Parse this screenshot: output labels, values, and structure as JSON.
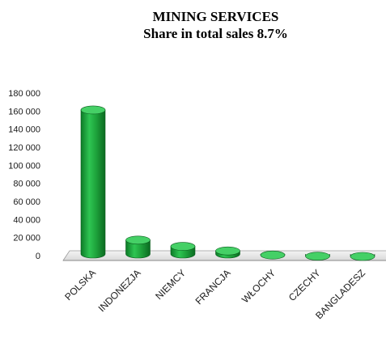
{
  "chart_data": {
    "type": "bar",
    "title": "MINING SERVICES",
    "subtitle": "Share in total sales 8.7%",
    "categories": [
      "POLSKA",
      "INDONEZJA",
      "NIEMCY",
      "FRANCJA",
      "WŁOCHY",
      "CZECHY",
      "BANGLADESZ"
    ],
    "values": [
      163000,
      19000,
      12000,
      7000,
      2500,
      1200,
      900
    ],
    "ylim": [
      0,
      180000
    ],
    "yticks": [
      "0",
      "20 000",
      "40 000",
      "60 000",
      "80 000",
      "100 000",
      "120 000",
      "140 000",
      "160 000",
      "180 000"
    ],
    "bar_color": "#1fa63d",
    "grid": false
  }
}
